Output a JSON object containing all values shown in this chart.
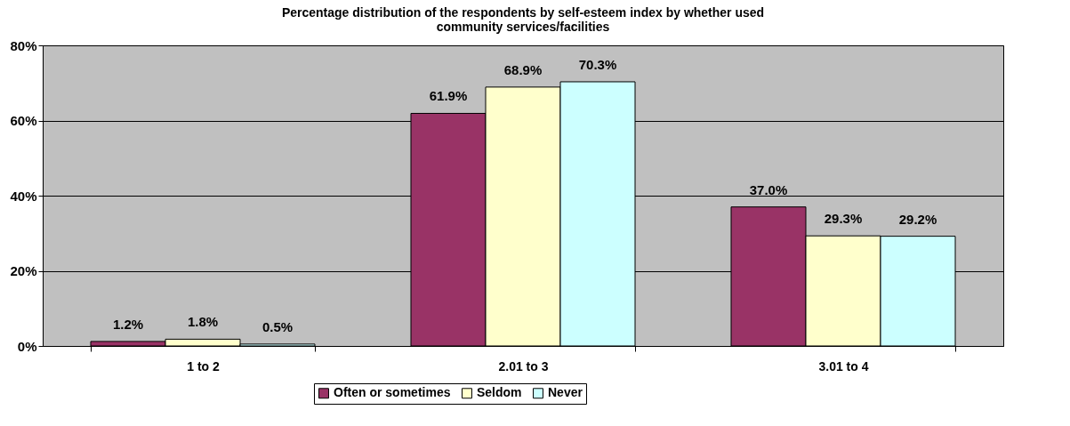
{
  "chart_data": {
    "type": "bar",
    "title": "Percentage distribution of the respondents by self-esteem index by whether used community services/facilities",
    "categories": [
      "1 to 2",
      "2.01 to 3",
      "3.01 to 4"
    ],
    "series": [
      {
        "name": "Often or sometimes",
        "color": "#993366",
        "values": [
          1.2,
          61.9,
          37.0
        ],
        "value_labels": [
          "1.2%",
          "61.9%",
          "37.0%"
        ]
      },
      {
        "name": "Seldom",
        "color": "#ffffcc",
        "values": [
          1.8,
          68.9,
          29.3
        ],
        "value_labels": [
          "1.8%",
          "68.9%",
          "29.3%"
        ]
      },
      {
        "name": "Never",
        "color": "#ccffff",
        "values": [
          0.5,
          70.3,
          29.2
        ],
        "value_labels": [
          "0.5%",
          "70.3%",
          "29.2%"
        ]
      }
    ],
    "ylim": [
      0,
      80
    ],
    "yticks": [
      {
        "value": 0,
        "label": "0%"
      },
      {
        "value": 20,
        "label": "20%"
      },
      {
        "value": 40,
        "label": "40%"
      },
      {
        "value": 60,
        "label": "60%"
      },
      {
        "value": 80,
        "label": "80%"
      }
    ],
    "grid": "y",
    "legend": "bottom"
  }
}
